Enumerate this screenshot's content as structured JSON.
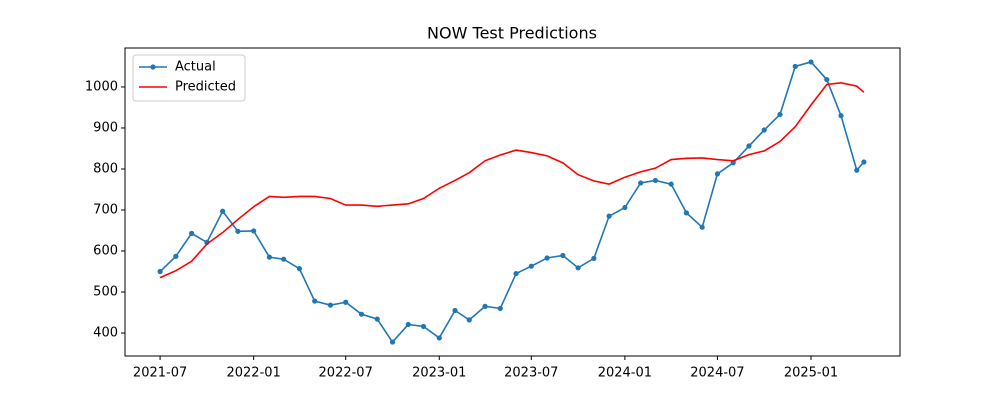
{
  "chart_data": {
    "type": "line",
    "title": "NOW Test Predictions",
    "x": [
      "2021-07-01",
      "2021-08-01",
      "2021-09-01",
      "2021-10-01",
      "2021-11-01",
      "2021-12-01",
      "2022-01-01",
      "2022-02-01",
      "2022-03-01",
      "2022-04-01",
      "2022-05-01",
      "2022-06-01",
      "2022-07-01",
      "2022-08-01",
      "2022-09-01",
      "2022-10-01",
      "2022-11-01",
      "2022-12-01",
      "2023-01-01",
      "2023-02-01",
      "2023-03-01",
      "2023-04-01",
      "2023-05-01",
      "2023-06-01",
      "2023-07-01",
      "2023-08-01",
      "2023-09-01",
      "2023-10-01",
      "2023-11-01",
      "2023-12-01",
      "2024-01-01",
      "2024-02-01",
      "2024-03-01",
      "2024-04-01",
      "2024-05-01",
      "2024-06-01",
      "2024-07-01",
      "2024-08-01",
      "2024-09-01",
      "2024-10-01",
      "2024-11-01",
      "2024-12-01",
      "2025-01-01",
      "2025-02-01",
      "2025-03-01",
      "2025-04-01",
      "2025-04-15"
    ],
    "series": [
      {
        "name": "Actual",
        "color": "#1f77b4",
        "markers": true,
        "values": [
          550,
          587,
          643,
          621,
          697,
          648,
          649,
          585,
          580,
          557,
          478,
          468,
          475,
          446,
          434,
          378,
          421,
          416,
          388,
          455,
          432,
          465,
          460,
          545,
          563,
          583,
          589,
          559,
          582,
          685,
          706,
          766,
          772,
          763,
          693,
          658,
          788,
          815,
          856,
          895,
          933,
          1050,
          1061,
          1018,
          930,
          797,
          817
        ]
      },
      {
        "name": "Predicted",
        "color": "#ff0000",
        "markers": false,
        "values": [
          535,
          552,
          575,
          617,
          645,
          677,
          708,
          733,
          731,
          733,
          733,
          728,
          712,
          712,
          709,
          712,
          715,
          728,
          753,
          772,
          791,
          820,
          834,
          846,
          840,
          832,
          815,
          786,
          771,
          763,
          780,
          793,
          802,
          823,
          826,
          827,
          823,
          820,
          835,
          844,
          867,
          903,
          956,
          1006,
          1010,
          1002,
          987
        ]
      }
    ],
    "xlim": [
      "2021-04-23",
      "2025-06-25"
    ],
    "xticks": [
      {
        "value": "2021-07-01",
        "label": "2021-07"
      },
      {
        "value": "2022-01-01",
        "label": "2022-01"
      },
      {
        "value": "2022-07-01",
        "label": "2022-07"
      },
      {
        "value": "2023-01-01",
        "label": "2023-01"
      },
      {
        "value": "2023-07-01",
        "label": "2023-07"
      },
      {
        "value": "2024-01-01",
        "label": "2024-01"
      },
      {
        "value": "2024-07-01",
        "label": "2024-07"
      },
      {
        "value": "2025-01-01",
        "label": "2025-01"
      }
    ],
    "ylim": [
      344,
      1095
    ],
    "yticks": [
      400,
      500,
      600,
      700,
      800,
      900,
      1000
    ],
    "grid": false,
    "legend": "upper left"
  }
}
